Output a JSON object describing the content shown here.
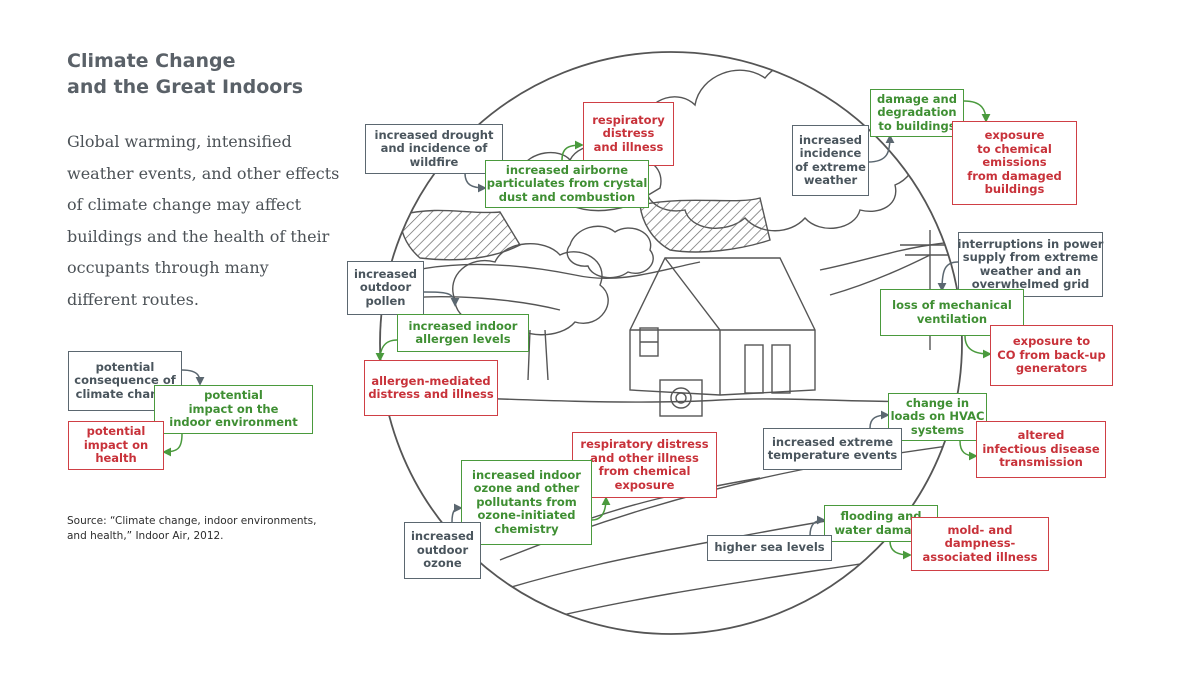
{
  "title": {
    "line1": "Climate Change",
    "line2": "and the Great Indoors"
  },
  "intro": {
    "line1": "Global warming, intensified",
    "line2": "weather events, and other effects",
    "line3": "of climate change may affect",
    "line4": "buildings and the health of their",
    "line5": "occupants through many",
    "line6": "different routes."
  },
  "legend": {
    "consequence": {
      "l1": "potential",
      "l2": "consequence of",
      "l3": "climate change"
    },
    "indoor": {
      "l1": "potential",
      "l2": "impact on the",
      "l3": "indoor environment"
    },
    "health": {
      "l1": "potential",
      "l2": "impact on",
      "l3": "health"
    }
  },
  "source": {
    "line1": "Source: “Climate change, indoor environments,",
    "line2": "and health,” Indoor Air, 2012."
  },
  "boxes": {
    "drought": {
      "l1": "increased drought",
      "l2": "and incidence of",
      "l3": "wildfire"
    },
    "respiratory_top": {
      "l1": "respiratory",
      "l2": "distress",
      "l3": "and illness"
    },
    "airborne": {
      "l1": "increased airborne",
      "l2": "particulates from crystal",
      "l3": "dust and combustion"
    },
    "damage": {
      "l1": "damage and",
      "l2": "degradation",
      "l3": "to buildings"
    },
    "extreme_weather": {
      "l1": "increased",
      "l2": "incidence",
      "l3": "of extreme",
      "l4": "weather"
    },
    "chem_emissions": {
      "l1": "exposure",
      "l2": "to chemical",
      "l3": "emissions",
      "l4": "from damaged",
      "l5": "buildings"
    },
    "pollen": {
      "l1": "increased",
      "l2": "outdoor",
      "l3": "pollen"
    },
    "allergen_levels": {
      "l1": "increased indoor",
      "l2": "allergen levels"
    },
    "allergen_illness": {
      "l1": "allergen-mediated",
      "l2": "distress and illness"
    },
    "power": {
      "l1": "interruptions in power",
      "l2": "supply from extreme",
      "l3": "weather and an",
      "l4": "overwhelmed grid"
    },
    "ventilation": {
      "l1": "loss of mechanical",
      "l2": "ventilation"
    },
    "co": {
      "l1": "exposure to",
      "l2": "CO from back-up",
      "l3": "generators"
    },
    "hvac": {
      "l1": "change in",
      "l2": "loads on HVAC",
      "l3": "systems"
    },
    "temperature": {
      "l1": "increased extreme",
      "l2": "temperature events"
    },
    "infectious": {
      "l1": "altered",
      "l2": "infectious disease",
      "l3": "transmission"
    },
    "resp_chem": {
      "l1": "respiratory distress",
      "l2": "and other illness",
      "l3": "from chemical",
      "l4": "exposure"
    },
    "ozone_indoor": {
      "l1": "increased indoor",
      "l2": "ozone and other",
      "l3": "pollutants from",
      "l4": "ozone-initiated",
      "l5": "chemistry"
    },
    "ozone_outdoor": {
      "l1": "increased",
      "l2": "outdoor",
      "l3": "ozone"
    },
    "flooding": {
      "l1": "flooding and",
      "l2": "water damage"
    },
    "sea": {
      "l1": "higher sea levels"
    },
    "mold": {
      "l1": "mold- and",
      "l2": "dampness-",
      "l3": "associated illness"
    }
  },
  "colors": {
    "gray": "#5b6770",
    "green": "#4a9a3d",
    "red": "#cf3f45",
    "line": "#555555"
  }
}
